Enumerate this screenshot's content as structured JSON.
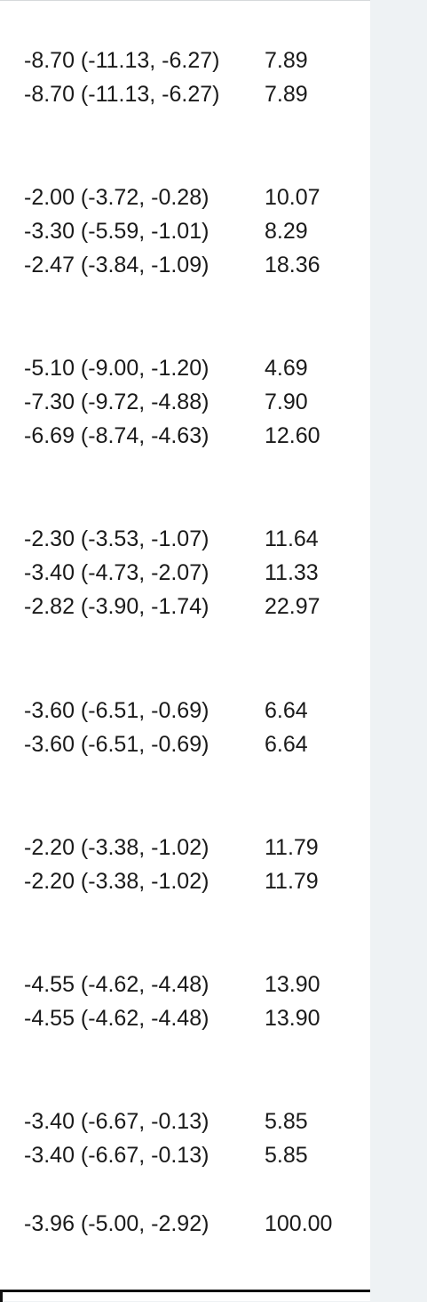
{
  "groups": [
    {
      "rows": [
        {
          "estimate": "-8.70 (-11.13, -6.27)",
          "weight": "7.89"
        },
        {
          "estimate": "-8.70 (-11.13, -6.27)",
          "weight": "7.89"
        }
      ]
    },
    {
      "rows": [
        {
          "estimate": "-2.00 (-3.72, -0.28)",
          "weight": "10.07"
        },
        {
          "estimate": "-3.30 (-5.59, -1.01)",
          "weight": "8.29"
        },
        {
          "estimate": "-2.47 (-3.84, -1.09)",
          "weight": "18.36"
        }
      ]
    },
    {
      "rows": [
        {
          "estimate": "-5.10 (-9.00, -1.20)",
          "weight": "4.69"
        },
        {
          "estimate": "-7.30 (-9.72, -4.88)",
          "weight": "7.90"
        },
        {
          "estimate": "-6.69 (-8.74, -4.63)",
          "weight": "12.60"
        }
      ]
    },
    {
      "rows": [
        {
          "estimate": "-2.30 (-3.53, -1.07)",
          "weight": "11.64"
        },
        {
          "estimate": "-3.40 (-4.73, -2.07)",
          "weight": "11.33"
        },
        {
          "estimate": "-2.82 (-3.90, -1.74)",
          "weight": "22.97"
        }
      ]
    },
    {
      "rows": [
        {
          "estimate": "-3.60 (-6.51, -0.69)",
          "weight": "6.64"
        },
        {
          "estimate": "-3.60 (-6.51, -0.69)",
          "weight": "6.64"
        }
      ]
    },
    {
      "rows": [
        {
          "estimate": "-2.20 (-3.38, -1.02)",
          "weight": "11.79"
        },
        {
          "estimate": "-2.20 (-3.38, -1.02)",
          "weight": "11.79"
        }
      ]
    },
    {
      "rows": [
        {
          "estimate": "-4.55 (-4.62, -4.48)",
          "weight": "13.90"
        },
        {
          "estimate": "-4.55 (-4.62, -4.48)",
          "weight": "13.90"
        }
      ]
    },
    {
      "rows": [
        {
          "estimate": "-3.40 (-6.67, -0.13)",
          "weight": "5.85"
        },
        {
          "estimate": "-3.40 (-6.67, -0.13)",
          "weight": "5.85"
        }
      ]
    }
  ],
  "overall": {
    "estimate": "-3.96 (-5.00, -2.92)",
    "weight": "100.00"
  }
}
